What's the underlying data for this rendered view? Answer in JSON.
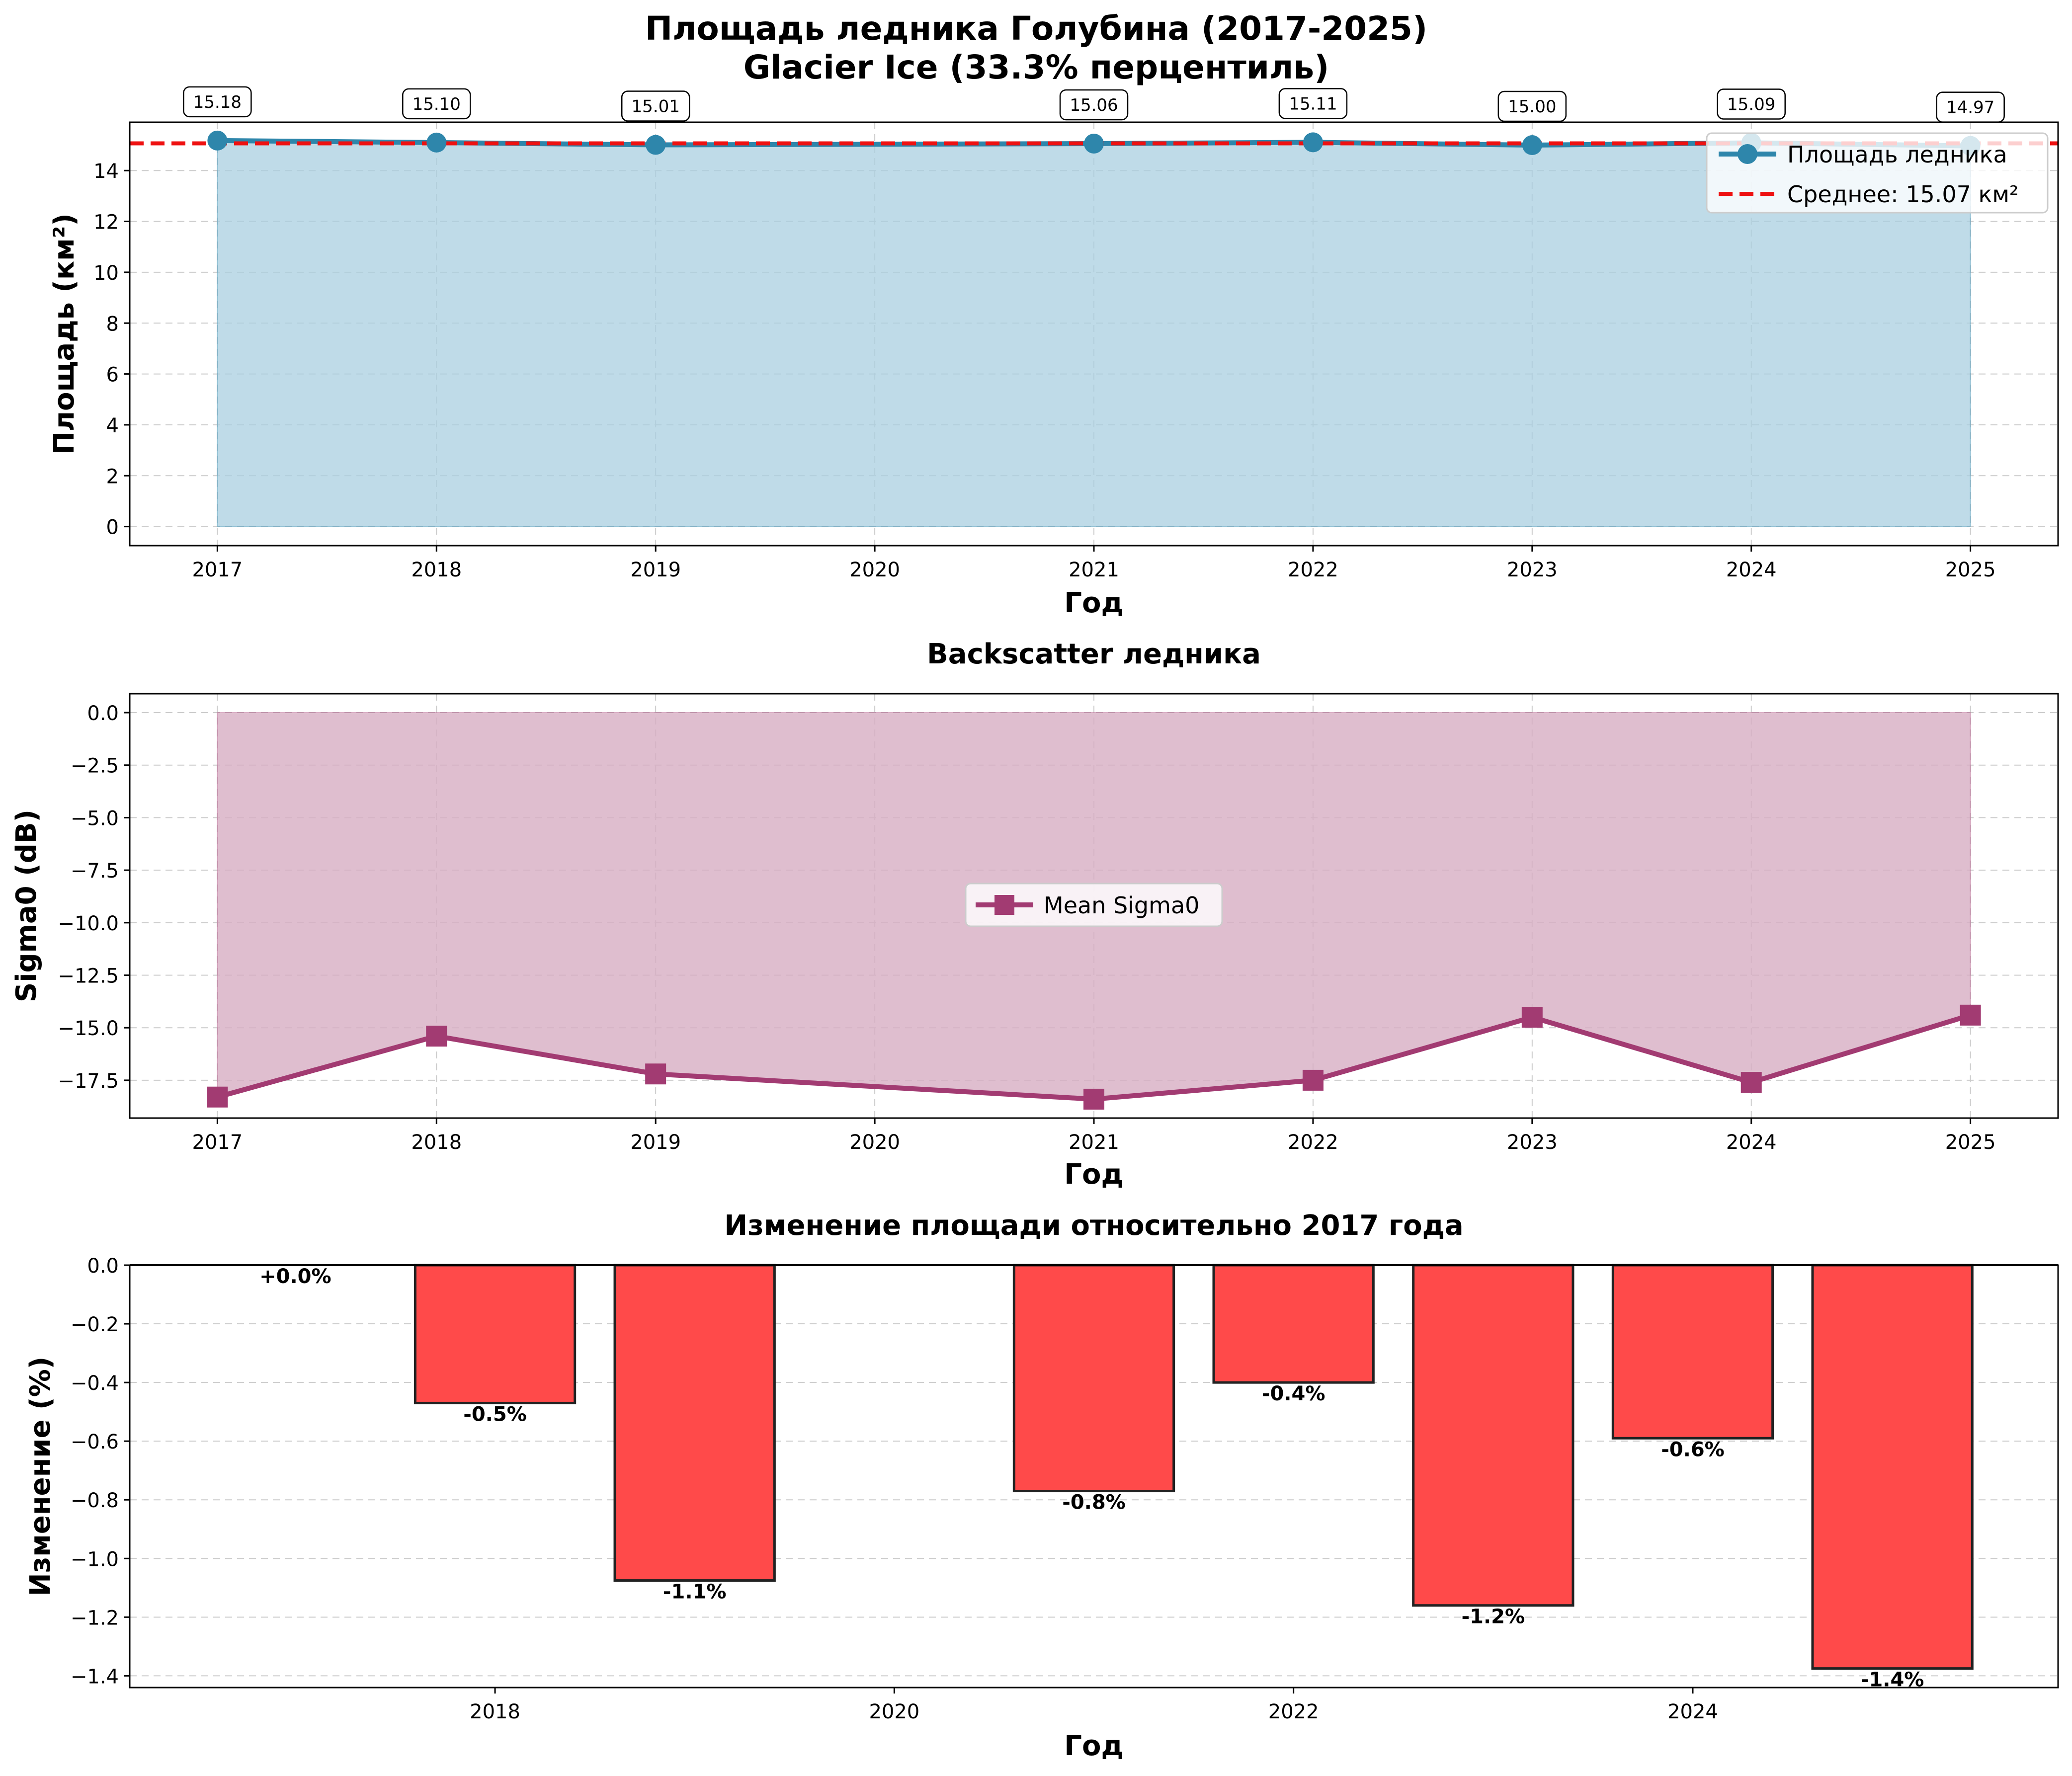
{
  "figure": {
    "title_line1": "Площадь ледника Голубина (2017-2025)",
    "title_line2": "Glacier Ice (33.3% перцентиль)"
  },
  "colors": {
    "area_line": "#2e86ab",
    "area_fill": "#a9cfe0",
    "mean_line": "#ee1111",
    "sigma_line": "#a23b72",
    "sigma_fill": "#d7aec3",
    "bar_fill": "#ff4a4a",
    "bar_edge": "#222222",
    "grid": "#cccccc"
  },
  "chart_data": [
    {
      "type": "line",
      "title": "",
      "xlabel": "Год",
      "ylabel": "Площадь (км²)",
      "x": [
        2017,
        2018,
        2019,
        2021,
        2022,
        2023,
        2024,
        2025
      ],
      "series": [
        {
          "name": "Площадь ледника",
          "values": [
            15.18,
            15.1,
            15.01,
            15.06,
            15.11,
            15.0,
            15.09,
            14.97
          ],
          "value_labels": [
            "15.18",
            "15.10",
            "15.01",
            "15.06",
            "15.11",
            "15.00",
            "15.09",
            "14.97"
          ]
        }
      ],
      "mean": {
        "name": "Среднее: 15.07 км²",
        "value": 15.07
      },
      "xlim": [
        2016.6,
        2025.4
      ],
      "ylim": [
        -0.75,
        15.9
      ],
      "xticks": [
        2017,
        2018,
        2019,
        2020,
        2021,
        2022,
        2023,
        2024,
        2025
      ],
      "yticks": [
        0,
        2,
        4,
        6,
        8,
        10,
        12,
        14
      ],
      "fill": "area-under-line",
      "grid": true,
      "legend": "upper right"
    },
    {
      "type": "line",
      "title": "Backscatter ледника",
      "xlabel": "Год",
      "ylabel": "Sigma0 (dB)",
      "x": [
        2017,
        2018,
        2019,
        2021,
        2022,
        2023,
        2024,
        2025
      ],
      "series": [
        {
          "name": "Mean Sigma0",
          "values": [
            -18.3,
            -15.4,
            -17.2,
            -18.4,
            -17.5,
            -14.5,
            -17.6,
            -14.4
          ]
        }
      ],
      "xlim": [
        2016.6,
        2025.4
      ],
      "ylim": [
        -19.3,
        0.9
      ],
      "xticks": [
        2017,
        2018,
        2019,
        2020,
        2021,
        2022,
        2023,
        2024,
        2025
      ],
      "yticks": [
        0.0,
        -2.5,
        -5.0,
        -7.5,
        -10.0,
        -12.5,
        -15.0,
        -17.5
      ],
      "ytick_labels": [
        "0.0",
        "−2.5",
        "−5.0",
        "−7.5",
        "−10.0",
        "−12.5",
        "−15.0",
        "−17.5"
      ],
      "fill": "between-zero-and-line",
      "grid": true,
      "legend": "center"
    },
    {
      "type": "bar",
      "title": "Изменение площади относительно 2017 года",
      "xlabel": "Год",
      "ylabel": "Изменение (%)",
      "x": [
        2017,
        2018,
        2019,
        2021,
        2022,
        2023,
        2024,
        2025
      ],
      "values": [
        0.0,
        -0.47,
        -1.075,
        -0.77,
        -0.4,
        -1.16,
        -0.59,
        -1.375
      ],
      "value_labels": [
        "+0.0%",
        "-0.5%",
        "-1.1%",
        "-0.8%",
        "-0.4%",
        "-1.2%",
        "-0.6%",
        "-1.4%"
      ],
      "xlim": [
        2016.17,
        2025.83
      ],
      "ylim": [
        -1.44,
        0.0
      ],
      "xticks": [
        2018,
        2020,
        2022,
        2024
      ],
      "yticks": [
        0.0,
        -0.2,
        -0.4,
        -0.6,
        -0.8,
        -1.0,
        -1.2,
        -1.4
      ],
      "ytick_labels": [
        "0.0",
        "−0.2",
        "−0.4",
        "−0.6",
        "−0.8",
        "−1.0",
        "−1.2",
        "−1.4"
      ],
      "grid": true
    }
  ]
}
